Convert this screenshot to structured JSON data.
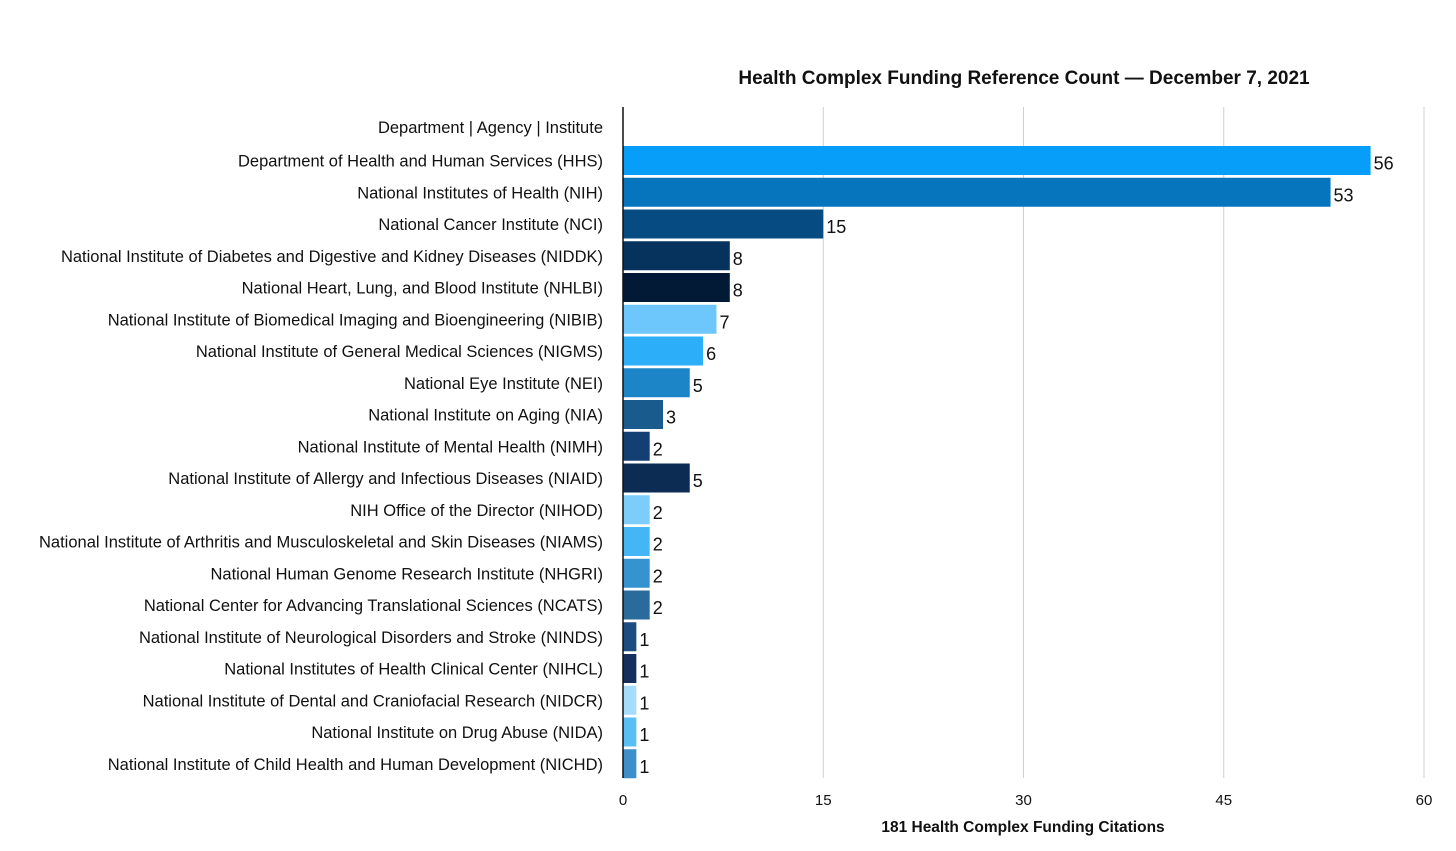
{
  "chart_data": {
    "type": "bar",
    "orientation": "horizontal",
    "title": "Health Complex Funding Reference Count — December 7, 2021",
    "category_header": "Department | Agency | Institute",
    "xlabel": "181 Health Complex Funding Citations",
    "xlim": [
      0,
      60
    ],
    "xticks": [
      0,
      15,
      30,
      45,
      60
    ],
    "grid": true,
    "legend": "none",
    "categories": [
      "Department of Health and Human Services (HHS)",
      "National Institutes of Health (NIH)",
      "National Cancer Institute (NCI)",
      "National Institute of Diabetes and Digestive and Kidney Diseases (NIDDK)",
      "National Heart, Lung, and Blood Institute (NHLBI)",
      "National Institute of Biomedical Imaging and Bioengineering (NIBIB)",
      "National Institute of General Medical Sciences (NIGMS)",
      "National Eye Institute (NEI)",
      "National Institute on Aging (NIA)",
      "National Institute of Mental Health (NIMH)",
      "National Institute of Allergy and Infectious Diseases (NIAID)",
      "NIH Office of the Director (NIHOD)",
      "National Institute of Arthritis and Musculoskeletal and Skin Diseases (NIAMS)",
      "National Human Genome Research Institute (NHGRI)",
      "National Center for Advancing Translational Sciences (NCATS)",
      "National Institute of Neurological Disorders and Stroke (NINDS)",
      "National Institutes of Health Clinical Center (NIHCL)",
      "National Institute of Dental and Craniofacial Research (NIDCR)",
      "National Institute on Drug Abuse (NIDA)",
      "National Institute of Child Health and Human Development (NICHD)"
    ],
    "values": [
      56,
      53,
      15,
      8,
      8,
      7,
      6,
      5,
      3,
      2,
      5,
      2,
      2,
      2,
      2,
      1,
      1,
      1,
      1,
      1
    ],
    "colors": [
      "#069ef8",
      "#0675bd",
      "#064c82",
      "#06325e",
      "#031a36",
      "#6ec7fc",
      "#2daef8",
      "#1c85c8",
      "#1a5b8e",
      "#143f72",
      "#0c2c54",
      "#7dcdfb",
      "#44b5f5",
      "#3593cf",
      "#2a6b9c",
      "#1d4d80",
      "#162f5d",
      "#a6dcfb",
      "#58bef4",
      "#3c8fc8"
    ]
  }
}
